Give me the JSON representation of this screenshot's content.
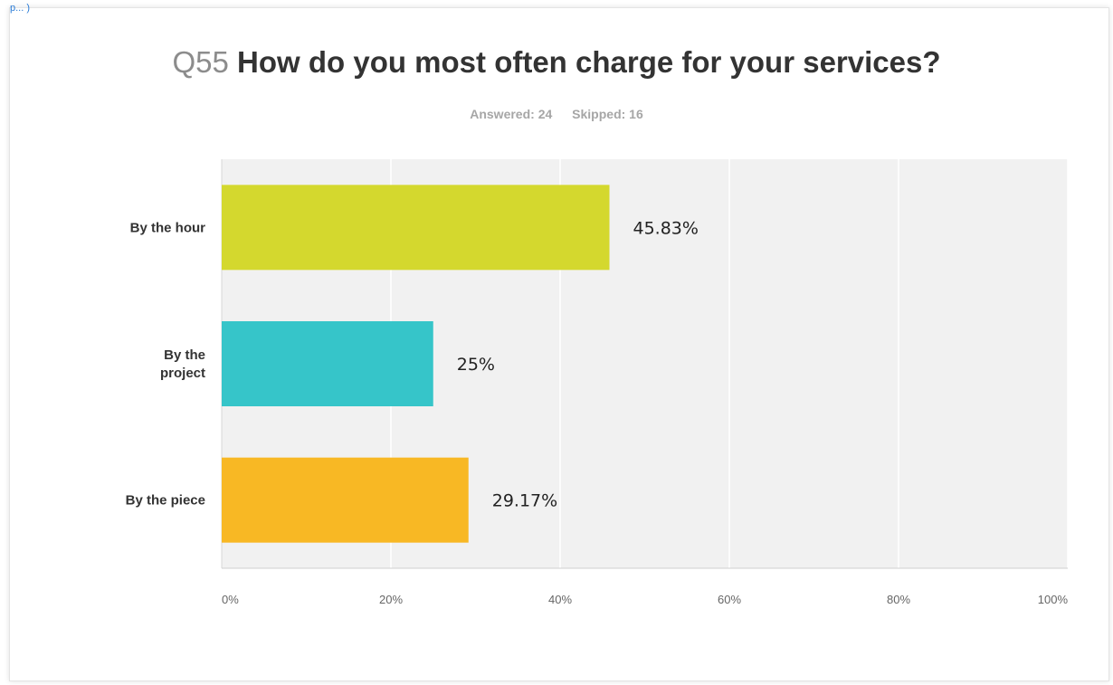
{
  "header": {
    "question_number": "Q55",
    "question_text": "How do you most often charge for your services?",
    "answered": "Answered: 24",
    "skipped": "Skipped: 16",
    "corner_mark": "p... )"
  },
  "colors": {
    "by_the_hour": "#d4d82e",
    "by_the_project": "#36c5c9",
    "by_the_piece": "#f8b824",
    "plot_background": "#f1f1f1",
    "gridline": "#ffffff"
  },
  "chart_data": {
    "type": "bar",
    "orientation": "horizontal",
    "title": "Q55 How do you most often charge for your services?",
    "subtitle": "Answered: 24 Skipped: 16",
    "categories": [
      "By the hour",
      "By the project",
      "By the piece"
    ],
    "category_lines": [
      [
        "By the hour"
      ],
      [
        "By the",
        "project"
      ],
      [
        "By the piece"
      ]
    ],
    "values": [
      45.83,
      25,
      29.17
    ],
    "value_labels": [
      "45.83%",
      "25%",
      "29.17%"
    ],
    "bar_colors": [
      "#d4d82e",
      "#36c5c9",
      "#f8b824"
    ],
    "xlim": [
      0,
      100
    ],
    "xticks": [
      0,
      20,
      40,
      60,
      80,
      100
    ],
    "xtick_labels": [
      "0%",
      "20%",
      "40%",
      "60%",
      "80%",
      "100%"
    ],
    "grid": true,
    "legend": "none"
  }
}
